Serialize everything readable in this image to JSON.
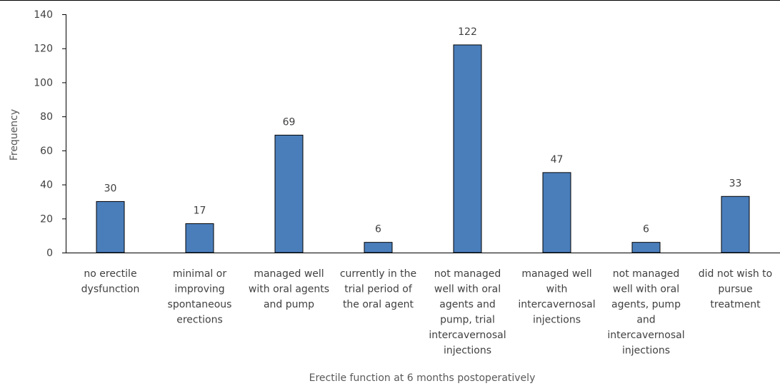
{
  "chart_data": {
    "type": "bar",
    "categories": [
      [
        "no erectile",
        "dysfunction"
      ],
      [
        "minimal or",
        "improving",
        "spontaneous",
        "erections"
      ],
      [
        "managed well",
        "with oral agents",
        "and pump"
      ],
      [
        "currently in the",
        "trial period of",
        "the oral agent"
      ],
      [
        "not managed",
        "well with oral",
        "agents and",
        "pump, trial",
        "intercavernosal",
        "injections"
      ],
      [
        "managed well",
        "with",
        "intercavernosal",
        "injections"
      ],
      [
        "not managed",
        "well with oral",
        "agents, pump",
        "and",
        "intercavernosal",
        "injections"
      ],
      [
        "did not wish to",
        "pursue",
        "treatment"
      ]
    ],
    "values": [
      30,
      17,
      69,
      6,
      122,
      47,
      6,
      33
    ],
    "data_labels": [
      "30",
      "17",
      "69",
      "6",
      "122",
      "47",
      "6",
      "33"
    ],
    "yticks": [
      "0",
      "20",
      "40",
      "60",
      "80",
      "100",
      "120",
      "140"
    ],
    "ylim": [
      0,
      140
    ],
    "xlabel": "Erectile function at 6 months postoperatively",
    "ylabel": "Frequency",
    "bar_color": "#4a7ebb",
    "bar_edge_color": "#000000",
    "axis_color": "#000000",
    "grid": false,
    "legend": "none"
  }
}
